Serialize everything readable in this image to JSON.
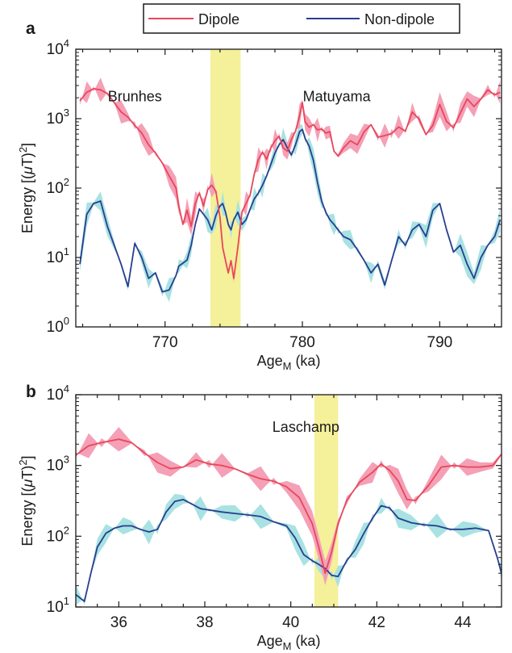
{
  "legend": {
    "dipole_label": "Dipole",
    "nondipole_label": "Non-dipole"
  },
  "colors": {
    "dipole": "#e8475b",
    "dipole_band": "#f4a0b6",
    "nondipole": "#283e8f",
    "nondipole_band": "#a8e2e2",
    "transition_shade": "#f5f09a"
  },
  "chart_data": [
    {
      "panel": "a",
      "type": "line",
      "xlabel_main": "Age",
      "xlabel_sub": "M",
      "xlabel_suffix": " (ka)",
      "ylabel": "Energy [(μT)²]",
      "ylabel_parts": {
        "pre": "Energy [(",
        "mu": "μ",
        "mid": "T)",
        "sup": "2",
        "post": "]"
      },
      "xlim": [
        763.5,
        794.5
      ],
      "ylim": [
        1,
        10000
      ],
      "yscale": "log",
      "xticks": [
        770,
        780,
        790
      ],
      "xtick_labels": [
        "770",
        "780",
        "790"
      ],
      "yticks": [
        1,
        10,
        100,
        1000,
        10000
      ],
      "ytick_labels": [
        {
          "base": "10",
          "exp": "0"
        },
        {
          "base": "10",
          "exp": "1"
        },
        {
          "base": "10",
          "exp": "2"
        },
        {
          "base": "10",
          "exp": "3"
        },
        {
          "base": "10",
          "exp": "4"
        }
      ],
      "shaded_interval": [
        773.3,
        775.5
      ],
      "annotations": [
        {
          "text": "Brunhes",
          "x": 767.8,
          "y": 2100
        },
        {
          "text": "Matuyama",
          "x": 782.5,
          "y": 2100
        }
      ],
      "series": [
        {
          "name": "Dipole",
          "x": [
            763.8,
            764.3,
            764.8,
            765.3,
            765.8,
            766.3,
            766.8,
            767.3,
            767.8,
            768.3,
            768.8,
            769.3,
            769.8,
            770.3,
            770.8,
            771.0,
            771.3,
            771.6,
            771.9,
            772.2,
            772.5,
            772.8,
            773.1,
            773.4,
            773.7,
            774.0,
            774.2,
            774.4,
            774.6,
            774.8,
            775.0,
            775.3,
            775.6,
            775.9,
            776.2,
            776.5,
            776.8,
            777.1,
            777.4,
            777.7,
            778.0,
            778.3,
            778.6,
            778.9,
            779.2,
            779.5,
            779.8,
            780.0,
            780.2,
            780.5,
            780.8,
            781.1,
            781.4,
            781.7,
            782.0,
            782.3,
            782.6,
            783.0,
            783.5,
            784.0,
            784.5,
            785.0,
            785.5,
            786.0,
            786.5,
            787.0,
            787.5,
            788.0,
            788.5,
            789.0,
            789.5,
            790.0,
            790.5,
            791.0,
            791.5,
            792.0,
            792.5,
            793.0,
            793.5,
            794.0,
            794.4
          ],
          "y": [
            1800,
            2400,
            2700,
            2600,
            2300,
            1700,
            1250,
            1050,
            800,
            620,
            420,
            320,
            230,
            150,
            100,
            55,
            30,
            48,
            28,
            60,
            85,
            55,
            95,
            110,
            90,
            38,
            14,
            9,
            6,
            9,
            5,
            14,
            45,
            60,
            80,
            160,
            260,
            330,
            260,
            380,
            480,
            560,
            380,
            340,
            500,
            660,
            1100,
            1700,
            900,
            750,
            820,
            690,
            710,
            620,
            650,
            340,
            290,
            380,
            480,
            420,
            650,
            820,
            540,
            570,
            610,
            760,
            660,
            1250,
            980,
            590,
            800,
            1600,
            910,
            740,
            1200,
            1920,
            1500,
            1920,
            2600,
            2200,
            2400
          ]
        },
        {
          "name": "Non-dipole",
          "x": [
            763.8,
            764.3,
            764.8,
            765.3,
            765.8,
            766.3,
            766.8,
            767.3,
            767.8,
            768.3,
            768.8,
            769.3,
            769.8,
            770.3,
            770.8,
            771.0,
            771.3,
            771.6,
            771.9,
            772.2,
            772.5,
            772.8,
            773.1,
            773.4,
            773.7,
            774.0,
            774.2,
            774.4,
            774.6,
            774.8,
            775.0,
            775.3,
            775.6,
            775.9,
            776.2,
            776.5,
            776.8,
            777.1,
            777.4,
            777.7,
            778.0,
            778.3,
            778.6,
            778.9,
            779.2,
            779.5,
            779.8,
            780.0,
            780.2,
            780.5,
            780.8,
            781.1,
            781.4,
            781.7,
            782.0,
            782.3,
            782.6,
            783.0,
            783.5,
            784.0,
            784.5,
            785.0,
            785.5,
            786.0,
            786.5,
            787.0,
            787.5,
            788.0,
            788.5,
            789.0,
            789.5,
            790.0,
            790.5,
            791.0,
            791.5,
            792.0,
            792.5,
            793.0,
            793.5,
            794.0,
            794.4
          ],
          "y": [
            8,
            42,
            60,
            65,
            28,
            15,
            8,
            3.8,
            16,
            10,
            5,
            6,
            3.2,
            3.4,
            5.5,
            7.5,
            8.3,
            9.2,
            15,
            30,
            50,
            42,
            35,
            25,
            40,
            55,
            60,
            45,
            30,
            25,
            35,
            45,
            30,
            35,
            50,
            70,
            85,
            110,
            150,
            220,
            320,
            420,
            500,
            380,
            300,
            420,
            650,
            700,
            520,
            400,
            250,
            120,
            65,
            45,
            35,
            30,
            25,
            20,
            18,
            13,
            9,
            6,
            8,
            4,
            9,
            20,
            15,
            25,
            30,
            20,
            48,
            60,
            25,
            12,
            15,
            8,
            5,
            10,
            15,
            20,
            35
          ]
        }
      ]
    },
    {
      "panel": "b",
      "type": "line",
      "xlabel_main": "Age",
      "xlabel_sub": "M",
      "xlabel_suffix": " (ka)",
      "ylabel": "Energy [(μT)²]",
      "ylabel_parts": {
        "pre": "Energy [(",
        "mu": "μ",
        "mid": "T)",
        "sup": "2",
        "post": "]"
      },
      "xlim": [
        35,
        44.9
      ],
      "ylim": [
        10,
        10000
      ],
      "yscale": "log",
      "xticks": [
        36,
        38,
        40,
        42,
        44
      ],
      "xtick_labels": [
        "36",
        "38",
        "40",
        "42",
        "44"
      ],
      "yticks": [
        10,
        100,
        1000,
        10000
      ],
      "ytick_labels": [
        {
          "base": "10",
          "exp": "1"
        },
        {
          "base": "10",
          "exp": "2"
        },
        {
          "base": "10",
          "exp": "3"
        },
        {
          "base": "10",
          "exp": "4"
        }
      ],
      "shaded_interval": [
        40.55,
        41.1
      ],
      "annotations": [
        {
          "text": "Laschamp",
          "x": 40.35,
          "y": 3500
        }
      ],
      "series": [
        {
          "name": "Dipole",
          "x": [
            35.0,
            35.3,
            35.6,
            36.0,
            36.3,
            36.6,
            36.9,
            37.2,
            37.5,
            37.8,
            38.1,
            38.4,
            38.7,
            39.0,
            39.3,
            39.6,
            39.9,
            40.2,
            40.5,
            40.65,
            40.8,
            40.95,
            41.1,
            41.3,
            41.6,
            41.9,
            42.1,
            42.3,
            42.5,
            42.7,
            42.9,
            43.2,
            43.5,
            43.8,
            44.1,
            44.4,
            44.7,
            44.9
          ],
          "y": [
            1400,
            1900,
            2100,
            2350,
            2100,
            1500,
            1100,
            900,
            950,
            1200,
            1050,
            1000,
            900,
            750,
            650,
            600,
            500,
            350,
            150,
            70,
            30,
            60,
            150,
            320,
            580,
            800,
            1050,
            850,
            600,
            330,
            320,
            520,
            950,
            1000,
            950,
            950,
            1000,
            1450
          ]
        },
        {
          "name": "Non-dipole",
          "x": [
            35.0,
            35.2,
            35.35,
            35.5,
            35.7,
            35.9,
            36.1,
            36.3,
            36.5,
            36.7,
            36.9,
            37.1,
            37.3,
            37.5,
            37.7,
            37.9,
            38.1,
            38.4,
            38.7,
            39.0,
            39.3,
            39.6,
            39.9,
            40.1,
            40.3,
            40.5,
            40.65,
            40.8,
            40.95,
            41.1,
            41.3,
            41.5,
            41.7,
            41.9,
            42.1,
            42.3,
            42.5,
            42.8,
            43.1,
            43.4,
            43.7,
            44.0,
            44.3,
            44.6,
            44.8,
            44.9
          ],
          "y": [
            15,
            12,
            30,
            70,
            110,
            130,
            140,
            140,
            125,
            115,
            125,
            220,
            310,
            330,
            285,
            245,
            235,
            220,
            210,
            200,
            190,
            160,
            140,
            95,
            55,
            45,
            40,
            35,
            28,
            27,
            45,
            65,
            110,
            180,
            270,
            250,
            180,
            155,
            145,
            140,
            125,
            125,
            130,
            120,
            50,
            30
          ]
        }
      ]
    }
  ]
}
